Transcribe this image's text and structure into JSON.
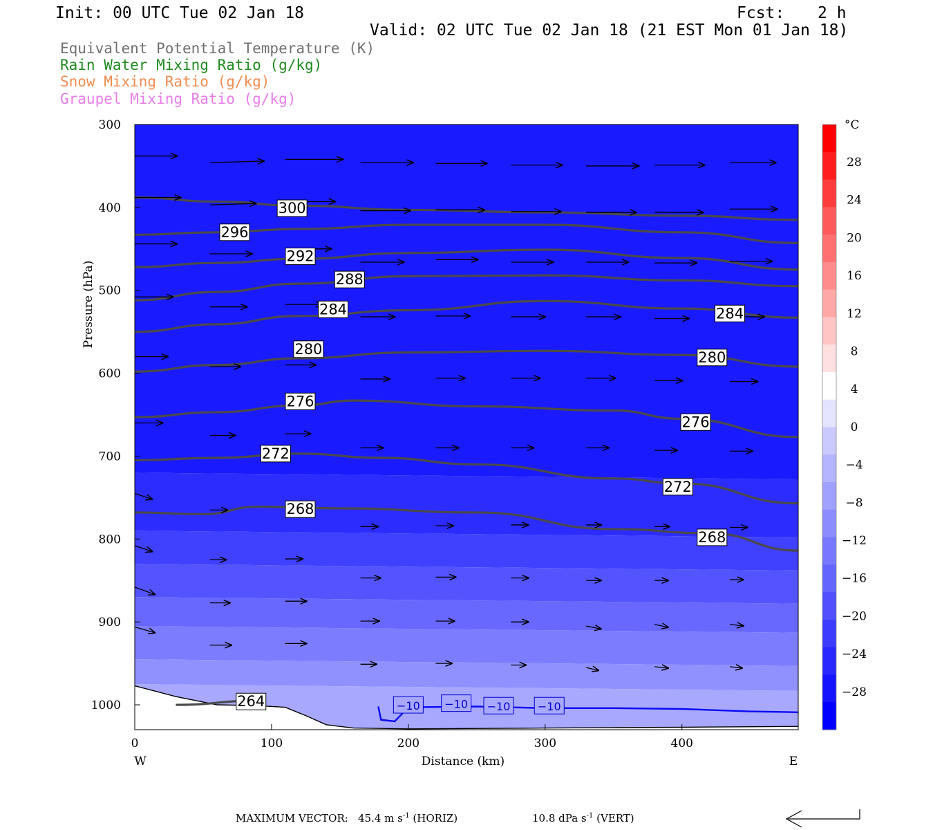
{
  "header": {
    "init": "Init: 00 UTC Tue 02 Jan 18",
    "fcst_label": "Fcst:",
    "fcst_value": "2 h",
    "valid": "Valid: 02 UTC Tue 02 Jan 18 (21 EST Mon 01 Jan 18)"
  },
  "legend": [
    {
      "text": "Equivalent Potential Temperature (K)",
      "color": "#707070"
    },
    {
      "text": "Rain Water Mixing Ratio (g/kg)",
      "color": "#1e8a1e"
    },
    {
      "text": "Snow Mixing Ratio (g/kg)",
      "color": "#f08c50"
    },
    {
      "text": "Graupel Mixing Ratio (g/kg)",
      "color": "#e87ce8"
    }
  ],
  "footer": {
    "max_vector_label": "MAXIMUM VECTOR:",
    "horiz_value": "45.4 m s",
    "horiz_exp": "-1",
    "horiz_tag": "(HORIZ)",
    "vert_value": "10.8 dPa s",
    "vert_exp": "-1",
    "vert_tag": "(VERT)"
  },
  "chart_data": {
    "type": "contour-cross-section",
    "xlabel": "Distance (km)",
    "ylabel": "Pressure (hPa)",
    "xlim": [
      0,
      485
    ],
    "ylim": [
      1030,
      300
    ],
    "x_ticks": [
      0,
      100,
      200,
      300,
      400
    ],
    "y_ticks": [
      300,
      400,
      500,
      600,
      700,
      800,
      900,
      1000
    ],
    "x_end_labels": {
      "left": "W",
      "right": "E"
    },
    "colorbar": {
      "unit": "°C",
      "labels": [
        "28",
        "24",
        "20",
        "16",
        "12",
        "8",
        "4",
        "0",
        "−4",
        "−8",
        "−12",
        "−16",
        "−20",
        "−24",
        "−28"
      ],
      "colors": [
        "#ff0000",
        "#ff1e1e",
        "#ff3c3c",
        "#ff5a5a",
        "#ff7070",
        "#ff8c8c",
        "#ffa8a8",
        "#ffc4c4",
        "#ffe0e0",
        "#ffffff",
        "#e4e4fe",
        "#cacaff",
        "#b4b4ff",
        "#a0a0ff",
        "#8c8cff",
        "#7878ff",
        "#6464ff",
        "#5050ff",
        "#3c3cff",
        "#2828ff",
        "#1414ff",
        "#0000ff"
      ]
    },
    "theta_e_lines": [
      {
        "label": "300",
        "p": [
          [
            0,
            388
          ],
          [
            60,
            393
          ],
          [
            120,
            398
          ],
          [
            200,
            403
          ],
          [
            300,
            406
          ],
          [
            400,
            410
          ],
          [
            485,
            415
          ]
        ]
      },
      {
        "label": "296",
        "p": [
          [
            0,
            433
          ],
          [
            60,
            430
          ],
          [
            120,
            426
          ],
          [
            200,
            421
          ],
          [
            300,
            421
          ],
          [
            400,
            430
          ],
          [
            485,
            443
          ]
        ]
      },
      {
        "label": "292",
        "p": [
          [
            0,
            472
          ],
          [
            60,
            467
          ],
          [
            120,
            462
          ],
          [
            200,
            455
          ],
          [
            300,
            451
          ],
          [
            400,
            461
          ],
          [
            485,
            475
          ]
        ]
      },
      {
        "label": "288",
        "p": [
          [
            0,
            512
          ],
          [
            60,
            502
          ],
          [
            120,
            492
          ],
          [
            200,
            483
          ],
          [
            300,
            482
          ],
          [
            400,
            488
          ],
          [
            485,
            495
          ]
        ]
      },
      {
        "label": "284",
        "p": [
          [
            0,
            550
          ],
          [
            60,
            541
          ],
          [
            120,
            531
          ],
          [
            200,
            524
          ],
          [
            300,
            513
          ],
          [
            400,
            522
          ],
          [
            485,
            533
          ]
        ]
      },
      {
        "label": "280",
        "p": [
          [
            0,
            598
          ],
          [
            60,
            590
          ],
          [
            120,
            582
          ],
          [
            200,
            575
          ],
          [
            300,
            573
          ],
          [
            400,
            578
          ],
          [
            485,
            592
          ]
        ]
      },
      {
        "label": "276",
        "p": [
          [
            0,
            653
          ],
          [
            60,
            647
          ],
          [
            120,
            639
          ],
          [
            160,
            633
          ],
          [
            250,
            640
          ],
          [
            350,
            645
          ],
          [
            400,
            655
          ],
          [
            485,
            677
          ]
        ]
      },
      {
        "label": "272",
        "p": [
          [
            0,
            705
          ],
          [
            60,
            702
          ],
          [
            120,
            697
          ],
          [
            180,
            702
          ],
          [
            250,
            710
          ],
          [
            350,
            727
          ],
          [
            400,
            733
          ],
          [
            485,
            757
          ]
        ]
      },
      {
        "label": "268",
        "p": [
          [
            0,
            768
          ],
          [
            50,
            770
          ],
          [
            90,
            761
          ],
          [
            150,
            763
          ],
          [
            250,
            768
          ],
          [
            350,
            788
          ],
          [
            420,
            793
          ],
          [
            485,
            814
          ]
        ]
      },
      {
        "label": "264",
        "p": [
          [
            30,
            1000
          ],
          [
            90,
            995
          ]
        ]
      }
    ],
    "theta_e_labels": [
      {
        "text": "300",
        "x": 115,
        "p": 401
      },
      {
        "text": "296",
        "x": 73,
        "p": 430
      },
      {
        "text": "292",
        "x": 121,
        "p": 459
      },
      {
        "text": "288",
        "x": 157,
        "p": 487
      },
      {
        "text": "284",
        "x": 145,
        "p": 523
      },
      {
        "text": "284",
        "x": 435,
        "p": 528
      },
      {
        "text": "280",
        "x": 127,
        "p": 571
      },
      {
        "text": "280",
        "x": 422,
        "p": 581
      },
      {
        "text": "276",
        "x": 121,
        "p": 634
      },
      {
        "text": "276",
        "x": 410,
        "p": 659
      },
      {
        "text": "272",
        "x": 103,
        "p": 697
      },
      {
        "text": "272",
        "x": 397,
        "p": 737
      },
      {
        "text": "268",
        "x": 121,
        "p": 764
      },
      {
        "text": "268",
        "x": 422,
        "p": 798
      },
      {
        "text": "264",
        "x": 85,
        "p": 996
      }
    ],
    "temp_isotherm": {
      "label": "−10",
      "p": [
        [
          178,
          1002
        ],
        [
          180,
          1018
        ],
        [
          190,
          1020
        ],
        [
          200,
          1003
        ],
        [
          250,
          1002
        ],
        [
          300,
          1004
        ],
        [
          350,
          1004
        ],
        [
          400,
          1005
        ],
        [
          450,
          1008
        ],
        [
          485,
          1009
        ]
      ]
    },
    "temp_isotherm_labels": [
      {
        "text": "−10",
        "x": 200,
        "p": 1000
      },
      {
        "text": "−10",
        "x": 235,
        "p": 998
      },
      {
        "text": "−10",
        "x": 266,
        "p": 1001
      },
      {
        "text": "−10",
        "x": 303,
        "p": 1001
      }
    ],
    "terrain": [
      [
        0,
        977
      ],
      [
        30,
        990
      ],
      [
        60,
        1000
      ],
      [
        90,
        1001
      ],
      [
        110,
        1003
      ],
      [
        125,
        1013
      ],
      [
        140,
        1024
      ],
      [
        160,
        1028
      ],
      [
        200,
        1029
      ],
      [
        300,
        1028
      ],
      [
        400,
        1027
      ],
      [
        485,
        1026
      ]
    ],
    "wind_vectors": [
      {
        "x": 0,
        "p": 338,
        "u": 33,
        "w": 0
      },
      {
        "x": 55,
        "p": 346,
        "u": 42,
        "w": -1
      },
      {
        "x": 110,
        "p": 342,
        "u": 45,
        "w": 0
      },
      {
        "x": 165,
        "p": 346,
        "u": 41,
        "w": 0
      },
      {
        "x": 220,
        "p": 347,
        "u": 40,
        "w": 0
      },
      {
        "x": 275,
        "p": 349,
        "u": 40,
        "w": 0
      },
      {
        "x": 330,
        "p": 350,
        "u": 41,
        "w": 0
      },
      {
        "x": 380,
        "p": 349,
        "u": 39,
        "w": 0
      },
      {
        "x": 435,
        "p": 346,
        "u": 36,
        "w": 0
      },
      {
        "x": 0,
        "p": 388,
        "u": 36,
        "w": 0
      },
      {
        "x": 55,
        "p": 397,
        "u": 36,
        "w": -1
      },
      {
        "x": 110,
        "p": 393,
        "u": 39,
        "w": 0
      },
      {
        "x": 165,
        "p": 404,
        "u": 39,
        "w": 0
      },
      {
        "x": 220,
        "p": 403,
        "u": 38,
        "w": 0
      },
      {
        "x": 275,
        "p": 405,
        "u": 39,
        "w": 0
      },
      {
        "x": 330,
        "p": 406,
        "u": 39,
        "w": 0
      },
      {
        "x": 380,
        "p": 406,
        "u": 38,
        "w": 0
      },
      {
        "x": 435,
        "p": 402,
        "u": 37,
        "w": 0
      },
      {
        "x": 0,
        "p": 444,
        "u": 33,
        "w": 0
      },
      {
        "x": 55,
        "p": 456,
        "u": 33,
        "w": 0
      },
      {
        "x": 110,
        "p": 450,
        "u": 36,
        "w": 0
      },
      {
        "x": 165,
        "p": 466,
        "u": 34,
        "w": 0
      },
      {
        "x": 220,
        "p": 463,
        "u": 33,
        "w": 0
      },
      {
        "x": 275,
        "p": 466,
        "u": 33,
        "w": 0
      },
      {
        "x": 330,
        "p": 466,
        "u": 33,
        "w": 0
      },
      {
        "x": 380,
        "p": 467,
        "u": 33,
        "w": 0
      },
      {
        "x": 435,
        "p": 465,
        "u": 33,
        "w": 0
      },
      {
        "x": 0,
        "p": 508,
        "u": 30,
        "w": 0
      },
      {
        "x": 55,
        "p": 520,
        "u": 29,
        "w": 0
      },
      {
        "x": 110,
        "p": 517,
        "u": 29,
        "w": 0
      },
      {
        "x": 165,
        "p": 532,
        "u": 27,
        "w": 0
      },
      {
        "x": 220,
        "p": 531,
        "u": 27,
        "w": 0
      },
      {
        "x": 275,
        "p": 532,
        "u": 27,
        "w": 0
      },
      {
        "x": 330,
        "p": 532,
        "u": 27,
        "w": 0
      },
      {
        "x": 380,
        "p": 534,
        "u": 27,
        "w": 0
      },
      {
        "x": 435,
        "p": 532,
        "u": 27,
        "w": 0
      },
      {
        "x": 0,
        "p": 580,
        "u": 26,
        "w": 0
      },
      {
        "x": 55,
        "p": 592,
        "u": 24,
        "w": 0
      },
      {
        "x": 110,
        "p": 590,
        "u": 24,
        "w": 0
      },
      {
        "x": 165,
        "p": 607,
        "u": 23,
        "w": 0
      },
      {
        "x": 220,
        "p": 606,
        "u": 23,
        "w": 0
      },
      {
        "x": 275,
        "p": 606,
        "u": 23,
        "w": 0
      },
      {
        "x": 330,
        "p": 606,
        "u": 23,
        "w": 0
      },
      {
        "x": 380,
        "p": 609,
        "u": 22,
        "w": 0
      },
      {
        "x": 435,
        "p": 610,
        "u": 22,
        "w": 0
      },
      {
        "x": 0,
        "p": 660,
        "u": 22,
        "w": 0
      },
      {
        "x": 55,
        "p": 675,
        "u": 20,
        "w": 0
      },
      {
        "x": 110,
        "p": 673,
        "u": 20,
        "w": 0
      },
      {
        "x": 165,
        "p": 690,
        "u": 18,
        "w": 0
      },
      {
        "x": 220,
        "p": 690,
        "u": 18,
        "w": 0
      },
      {
        "x": 275,
        "p": 690,
        "u": 18,
        "w": 0
      },
      {
        "x": 330,
        "p": 690,
        "u": 18,
        "w": 0
      },
      {
        "x": 380,
        "p": 693,
        "u": 18,
        "w": 0
      },
      {
        "x": 435,
        "p": 694,
        "u": 18,
        "w": 0
      },
      {
        "x": 0,
        "p": 745,
        "u": 14,
        "w": 4
      },
      {
        "x": 55,
        "p": 765,
        "u": 14,
        "w": 0
      },
      {
        "x": 110,
        "p": 764,
        "u": 14,
        "w": 0
      },
      {
        "x": 165,
        "p": 785,
        "u": 14,
        "w": 0
      },
      {
        "x": 220,
        "p": 784,
        "u": 14,
        "w": 0
      },
      {
        "x": 275,
        "p": 783,
        "u": 14,
        "w": 0
      },
      {
        "x": 330,
        "p": 783,
        "u": 12,
        "w": 0
      },
      {
        "x": 380,
        "p": 785,
        "u": 12,
        "w": 0
      },
      {
        "x": 435,
        "p": 786,
        "u": 14,
        "w": 0
      },
      {
        "x": 0,
        "p": 808,
        "u": 14,
        "w": 4
      },
      {
        "x": 55,
        "p": 825,
        "u": 13,
        "w": 0
      },
      {
        "x": 110,
        "p": 824,
        "u": 14,
        "w": 0
      },
      {
        "x": 165,
        "p": 847,
        "u": 16,
        "w": 0
      },
      {
        "x": 220,
        "p": 846,
        "u": 16,
        "w": 0
      },
      {
        "x": 275,
        "p": 847,
        "u": 14,
        "w": 0
      },
      {
        "x": 330,
        "p": 850,
        "u": 12,
        "w": 0
      },
      {
        "x": 380,
        "p": 850,
        "u": 11,
        "w": 0
      },
      {
        "x": 435,
        "p": 849,
        "u": 11,
        "w": 0
      },
      {
        "x": 0,
        "p": 858,
        "u": 16,
        "w": 5
      },
      {
        "x": 55,
        "p": 877,
        "u": 16,
        "w": 0
      },
      {
        "x": 110,
        "p": 875,
        "u": 17,
        "w": 0
      },
      {
        "x": 165,
        "p": 899,
        "u": 15,
        "w": 0
      },
      {
        "x": 220,
        "p": 899,
        "u": 15,
        "w": 0
      },
      {
        "x": 275,
        "p": 900,
        "u": 14,
        "w": 0
      },
      {
        "x": 330,
        "p": 905,
        "u": 12,
        "w": 2
      },
      {
        "x": 380,
        "p": 903,
        "u": 11,
        "w": 2
      },
      {
        "x": 435,
        "p": 903,
        "u": 11,
        "w": 1
      },
      {
        "x": 0,
        "p": 906,
        "u": 16,
        "w": 4
      },
      {
        "x": 55,
        "p": 928,
        "u": 17,
        "w": 0
      },
      {
        "x": 110,
        "p": 926,
        "u": 17,
        "w": 0
      },
      {
        "x": 165,
        "p": 951,
        "u": 13,
        "w": 0
      },
      {
        "x": 220,
        "p": 950,
        "u": 13,
        "w": 0
      },
      {
        "x": 275,
        "p": 952,
        "u": 12,
        "w": 0
      },
      {
        "x": 330,
        "p": 955,
        "u": 10,
        "w": 2
      },
      {
        "x": 380,
        "p": 954,
        "u": 11,
        "w": 1
      },
      {
        "x": 435,
        "p": 954,
        "u": 10,
        "w": 1
      }
    ]
  }
}
